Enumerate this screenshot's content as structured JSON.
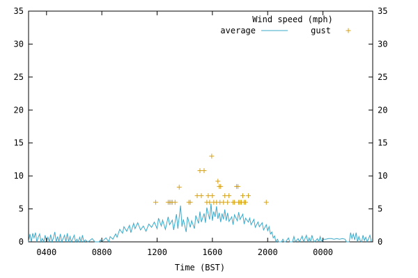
{
  "chart_data": {
    "type": "line",
    "legend": {
      "title": "Wind speed (mph)",
      "placement": "top-right"
    },
    "xlabel": "Time (BST)",
    "ylabel": "",
    "xlim": [
      2.7,
      27.6
    ],
    "ylim": [
      0,
      35
    ],
    "x_ticks": [
      {
        "value": 4,
        "label": "0400"
      },
      {
        "value": 8,
        "label": "0800"
      },
      {
        "value": 12,
        "label": "1200"
      },
      {
        "value": 16,
        "label": "1600"
      },
      {
        "value": 20,
        "label": "2000"
      },
      {
        "value": 24,
        "label": "0000"
      }
    ],
    "y_ticks": [
      0,
      5,
      10,
      15,
      20,
      25,
      30,
      35
    ],
    "grid": false,
    "series": [
      {
        "name": "average",
        "style": "line",
        "color": "#3aa8c8",
        "points": [
          [
            2.7,
            0
          ],
          [
            2.8,
            1.2
          ],
          [
            2.9,
            0
          ],
          [
            3.0,
            1.3
          ],
          [
            3.1,
            0.6
          ],
          [
            3.2,
            1.4
          ],
          [
            3.3,
            0
          ],
          [
            3.4,
            0.7
          ],
          [
            3.5,
            1.2
          ],
          [
            3.6,
            0
          ],
          [
            3.7,
            0.5
          ],
          [
            3.8,
            0
          ],
          [
            3.9,
            1.0
          ],
          [
            4.0,
            0
          ],
          [
            4.1,
            0.7
          ],
          [
            4.2,
            0
          ],
          [
            4.3,
            1.1
          ],
          [
            4.4,
            0
          ],
          [
            4.5,
            0.6
          ],
          [
            4.6,
            1.5
          ],
          [
            4.7,
            0
          ],
          [
            4.8,
            0.8
          ],
          [
            4.9,
            0
          ],
          [
            5.0,
            1.2
          ],
          [
            5.1,
            0
          ],
          [
            5.2,
            0.5
          ],
          [
            5.3,
            1.0
          ],
          [
            5.4,
            0
          ],
          [
            5.5,
            1.3
          ],
          [
            5.6,
            0
          ],
          [
            5.7,
            0.8
          ],
          [
            5.8,
            0
          ],
          [
            5.9,
            0.5
          ],
          [
            6.0,
            1.0
          ],
          [
            6.1,
            0
          ],
          [
            6.2,
            0.4
          ],
          [
            6.3,
            0
          ],
          [
            6.4,
            0.7
          ],
          [
            6.5,
            0
          ],
          [
            6.6,
            1.0
          ],
          [
            6.7,
            0
          ],
          [
            6.8,
            0.3
          ],
          [
            7.0,
            0
          ],
          [
            7.3,
            0.5
          ],
          [
            7.5,
            0
          ],
          [
            7.8,
            0
          ],
          [
            7.9,
            0.3
          ],
          [
            8.0,
            0
          ],
          [
            8.3,
            0.6
          ],
          [
            8.5,
            0
          ],
          [
            8.6,
            0.8
          ],
          [
            8.8,
            0.4
          ],
          [
            9.0,
            1.2
          ],
          [
            9.1,
            0.7
          ],
          [
            9.3,
            1.9
          ],
          [
            9.5,
            1.3
          ],
          [
            9.6,
            2.3
          ],
          [
            9.8,
            1.6
          ],
          [
            10.0,
            2.5
          ],
          [
            10.1,
            1.4
          ],
          [
            10.3,
            2.8
          ],
          [
            10.4,
            2.0
          ],
          [
            10.6,
            2.9
          ],
          [
            10.8,
            1.8
          ],
          [
            11.0,
            2.4
          ],
          [
            11.2,
            1.6
          ],
          [
            11.4,
            2.7
          ],
          [
            11.6,
            2.2
          ],
          [
            11.8,
            3.0
          ],
          [
            12.0,
            2.0
          ],
          [
            12.1,
            3.6
          ],
          [
            12.3,
            2.4
          ],
          [
            12.4,
            3.3
          ],
          [
            12.6,
            1.9
          ],
          [
            12.8,
            3.8
          ],
          [
            12.9,
            2.6
          ],
          [
            13.1,
            3.3
          ],
          [
            13.2,
            1.8
          ],
          [
            13.4,
            4.2
          ],
          [
            13.5,
            2.0
          ],
          [
            13.7,
            5.5
          ],
          [
            13.8,
            2.3
          ],
          [
            13.9,
            3.4
          ],
          [
            14.1,
            1.5
          ],
          [
            14.2,
            3.8
          ],
          [
            14.4,
            2.2
          ],
          [
            14.5,
            3.2
          ],
          [
            14.7,
            2.0
          ],
          [
            14.8,
            4.0
          ],
          [
            15.0,
            2.8
          ],
          [
            15.1,
            4.6
          ],
          [
            15.2,
            3.0
          ],
          [
            15.4,
            4.3
          ],
          [
            15.5,
            2.9
          ],
          [
            15.6,
            5.2
          ],
          [
            15.8,
            3.4
          ],
          [
            15.9,
            5.8
          ],
          [
            16.0,
            3.2
          ],
          [
            16.1,
            4.6
          ],
          [
            16.2,
            3.8
          ],
          [
            16.3,
            5.4
          ],
          [
            16.4,
            3.5
          ],
          [
            16.5,
            4.4
          ],
          [
            16.6,
            3.0
          ],
          [
            16.7,
            4.3
          ],
          [
            16.8,
            3.4
          ],
          [
            16.9,
            4.9
          ],
          [
            17.0,
            3.2
          ],
          [
            17.1,
            4.4
          ],
          [
            17.2,
            3.1
          ],
          [
            17.4,
            3.8
          ],
          [
            17.5,
            2.6
          ],
          [
            17.6,
            4.1
          ],
          [
            17.8,
            3.2
          ],
          [
            17.9,
            4.5
          ],
          [
            18.0,
            3.4
          ],
          [
            18.2,
            4.2
          ],
          [
            18.3,
            2.7
          ],
          [
            18.4,
            3.6
          ],
          [
            18.6,
            3.0
          ],
          [
            18.7,
            3.6
          ],
          [
            18.8,
            2.6
          ],
          [
            19.0,
            3.4
          ],
          [
            19.1,
            2.2
          ],
          [
            19.3,
            3.0
          ],
          [
            19.4,
            2.3
          ],
          [
            19.6,
            2.9
          ],
          [
            19.7,
            1.8
          ],
          [
            19.9,
            2.6
          ],
          [
            20.0,
            1.7
          ],
          [
            20.1,
            2.3
          ],
          [
            20.2,
            1.2
          ],
          [
            20.3,
            1.5
          ],
          [
            20.4,
            0.6
          ],
          [
            20.5,
            0.9
          ],
          [
            20.6,
            0
          ],
          [
            20.7,
            0.4
          ],
          [
            20.8,
            0
          ],
          [
            21.0,
            0
          ],
          [
            21.1,
            0.4
          ],
          [
            21.2,
            0
          ],
          [
            21.3,
            0
          ],
          [
            21.5,
            0.6
          ],
          [
            21.6,
            0
          ],
          [
            21.8,
            0
          ],
          [
            21.9,
            0.8
          ],
          [
            22.0,
            0
          ],
          [
            22.2,
            0.5
          ],
          [
            22.3,
            0
          ],
          [
            22.5,
            0.9
          ],
          [
            22.6,
            0
          ],
          [
            22.7,
            0.5
          ],
          [
            22.8,
            1.0
          ],
          [
            22.9,
            0
          ],
          [
            23.0,
            0.6
          ],
          [
            23.1,
            0
          ],
          [
            23.2,
            1.0
          ],
          [
            23.3,
            0.3
          ],
          [
            23.4,
            0
          ],
          [
            23.6,
            0.5
          ],
          [
            23.7,
            0
          ],
          [
            23.8,
            0.8
          ],
          [
            23.9,
            0
          ],
          [
            24.0,
            0.4
          ],
          [
            24.2,
            0.4
          ],
          [
            24.4,
            0.5
          ],
          [
            24.6,
            0.5
          ],
          [
            24.8,
            0.4
          ],
          [
            25.0,
            0.5
          ],
          [
            25.2,
            0.4
          ],
          [
            25.4,
            0.5
          ],
          [
            25.6,
            0.4
          ],
          [
            25.7,
            0
          ],
          [
            25.9,
            0
          ],
          [
            26.0,
            1.4
          ],
          [
            26.1,
            0.5
          ],
          [
            26.2,
            1.2
          ],
          [
            26.3,
            0.3
          ],
          [
            26.4,
            1.4
          ],
          [
            26.5,
            0
          ],
          [
            26.6,
            0.8
          ],
          [
            26.7,
            0.2
          ],
          [
            26.8,
            0
          ],
          [
            26.9,
            1.0
          ],
          [
            27.0,
            0.2
          ],
          [
            27.1,
            0.7
          ],
          [
            27.2,
            0
          ],
          [
            27.3,
            0.5
          ],
          [
            27.4,
            1.0
          ],
          [
            27.5,
            0
          ],
          [
            27.6,
            0
          ]
        ]
      },
      {
        "name": "gust",
        "style": "marker",
        "marker": "+",
        "color": "#d4a017",
        "points": [
          [
            11.9,
            6.0
          ],
          [
            12.8,
            6.0
          ],
          [
            12.9,
            6.0
          ],
          [
            13.0,
            6.0
          ],
          [
            13.1,
            6.0
          ],
          [
            13.3,
            6.0
          ],
          [
            13.6,
            8.3
          ],
          [
            14.3,
            6.0
          ],
          [
            14.4,
            6.0
          ],
          [
            14.9,
            7.0
          ],
          [
            15.1,
            10.8
          ],
          [
            15.2,
            7.0
          ],
          [
            15.4,
            10.8
          ],
          [
            15.6,
            6.0
          ],
          [
            15.7,
            7.0
          ],
          [
            15.8,
            6.0
          ],
          [
            15.95,
            13.0
          ],
          [
            16.0,
            7.0
          ],
          [
            16.1,
            6.0
          ],
          [
            16.3,
            6.0
          ],
          [
            16.4,
            9.2
          ],
          [
            16.5,
            8.4
          ],
          [
            16.55,
            6.0
          ],
          [
            16.6,
            8.4
          ],
          [
            16.8,
            6.0
          ],
          [
            16.9,
            7.0
          ],
          [
            17.1,
            6.0
          ],
          [
            17.2,
            7.0
          ],
          [
            17.5,
            6.0
          ],
          [
            17.6,
            6.0
          ],
          [
            17.75,
            8.4
          ],
          [
            17.85,
            8.4
          ],
          [
            17.9,
            6.0
          ],
          [
            18.0,
            6.0
          ],
          [
            18.1,
            6.0
          ],
          [
            18.2,
            7.0
          ],
          [
            18.3,
            6.0
          ],
          [
            18.4,
            6.0
          ],
          [
            18.6,
            7.0
          ],
          [
            19.9,
            6.0
          ]
        ]
      }
    ]
  }
}
